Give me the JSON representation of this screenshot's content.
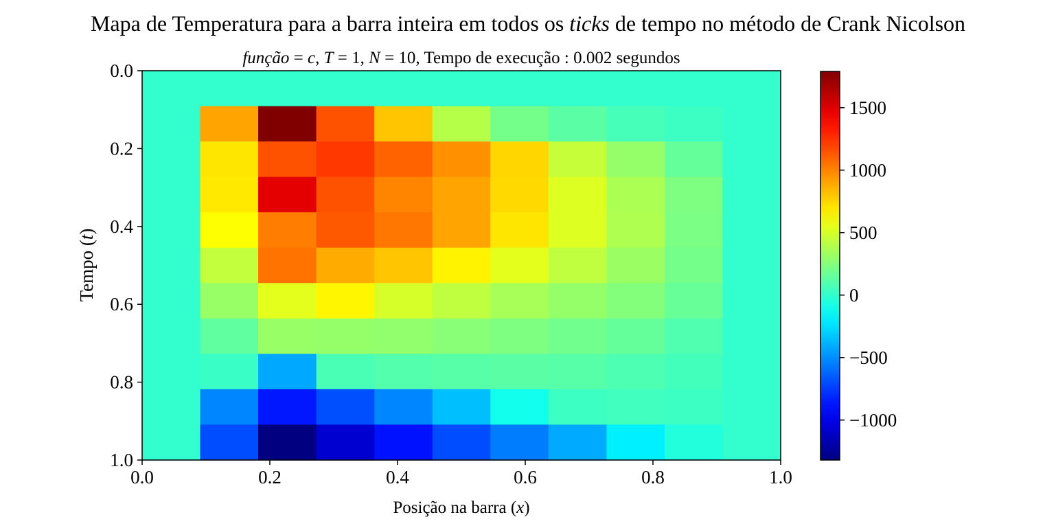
{
  "chart_data": {
    "type": "heatmap",
    "title_parts": [
      "Mapa de Temperatura para a barra inteira em todos os ",
      "ticks",
      " de tempo no método de Crank Nicolson"
    ],
    "subtitle_parts": [
      "função",
      " = ",
      "c",
      ",  ",
      "T",
      " = 1,  ",
      "N",
      " = 10,  Tempo de execução :  0.002 segundos"
    ],
    "xlabel_parts": [
      "Posição na barra (",
      "x",
      ")"
    ],
    "ylabel_parts": [
      "Tempo (",
      "t",
      ")"
    ],
    "xlim": [
      0,
      1
    ],
    "ylim": [
      1,
      0
    ],
    "xticks": [
      "0.0",
      "0.2",
      "0.4",
      "0.6",
      "0.8",
      "1.0"
    ],
    "yticks": [
      "0.0",
      "0.2",
      "0.4",
      "0.6",
      "0.8",
      "1.0"
    ],
    "colormap": "jet",
    "colorbar_range": [
      -1320,
      1790
    ],
    "colorbar_ticks": [
      "−1000",
      "−500",
      "0",
      "500",
      "1000",
      "1500"
    ],
    "colorbar_tick_values": [
      -1000,
      -500,
      0,
      500,
      1000,
      1500
    ],
    "grid": false,
    "rows": 11,
    "cols": 11,
    "values": [
      [
        0,
        0,
        0,
        0,
        0,
        0,
        0,
        0,
        0,
        0,
        0
      ],
      [
        0,
        900,
        1790,
        1150,
        800,
        400,
        200,
        120,
        60,
        30,
        0
      ],
      [
        0,
        700,
        1150,
        1230,
        1100,
        960,
        750,
        450,
        300,
        150,
        0
      ],
      [
        0,
        690,
        1480,
        1150,
        1000,
        900,
        740,
        520,
        370,
        230,
        0
      ],
      [
        0,
        620,
        1020,
        1130,
        1040,
        900,
        700,
        520,
        380,
        220,
        0
      ],
      [
        0,
        440,
        1050,
        880,
        800,
        660,
        540,
        430,
        320,
        200,
        0
      ],
      [
        0,
        310,
        540,
        650,
        500,
        430,
        360,
        300,
        250,
        160,
        0
      ],
      [
        0,
        140,
        310,
        300,
        290,
        260,
        230,
        190,
        150,
        90,
        0
      ],
      [
        0,
        20,
        -420,
        70,
        100,
        110,
        120,
        110,
        80,
        50,
        0
      ],
      [
        0,
        -520,
        -860,
        -690,
        -520,
        -350,
        -100,
        30,
        40,
        30,
        0
      ],
      [
        0,
        -700,
        -1320,
        -1070,
        -880,
        -700,
        -550,
        -410,
        -200,
        -50,
        0
      ]
    ]
  }
}
